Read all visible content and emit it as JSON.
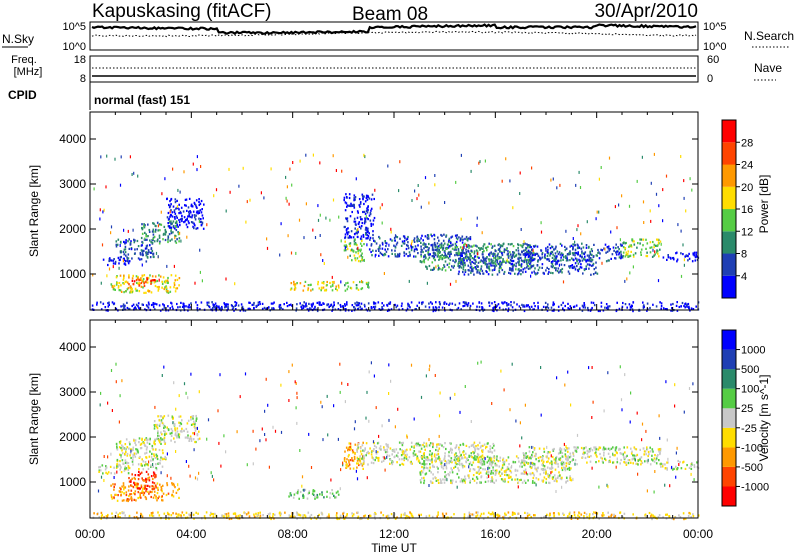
{
  "header": {
    "station": "Kapuskasing (fitACF)",
    "beam": "Beam 08",
    "date": "30/Apr/2010"
  },
  "top_panels": {
    "nsky_label": "N.Sky",
    "nsky_ticks": [
      "10^5",
      "10^0"
    ],
    "nsearch_label": "N.Search",
    "nsearch_ticks": [
      "10^5",
      "10^0"
    ],
    "freq_label_1": "Freq.",
    "freq_label_2": "[MHz]",
    "freq_ticks": [
      "18",
      "8"
    ],
    "nave_label": "Nave",
    "nave_ticks": [
      "60",
      "0"
    ],
    "cpid_label": "CPID",
    "cpid_value": "normal (fast) 151",
    "colors": {
      "line": "#000000"
    }
  },
  "chart_data": [
    {
      "type": "heatmap",
      "title": "",
      "xlabel": "",
      "ylabel": "Slant Range [km]",
      "x_ticks": [
        "00:00",
        "04:00",
        "08:00",
        "12:00",
        "16:00",
        "20:00",
        "00:00"
      ],
      "x_range_hours": [
        0,
        24
      ],
      "y_ticks": [
        1000,
        2000,
        3000,
        4000
      ],
      "ylim": [
        200,
        4600
      ],
      "colorbar": {
        "label": "Power [dB]",
        "ticks": [
          "4",
          "8",
          "12",
          "16",
          "20",
          "24",
          "28"
        ],
        "colors": [
          "#0000ff",
          "#1f3fb4",
          "#2a8a6a",
          "#55cc44",
          "#ffdd00",
          "#ff9900",
          "#ff4400",
          "#ff0000"
        ]
      },
      "bands": [
        {
          "t0": 0.5,
          "t1": 1.5,
          "r0": 1200,
          "r1": 1400,
          "level": 0
        },
        {
          "t0": 1.0,
          "t1": 2.5,
          "r0": 1300,
          "r1": 1800,
          "level": 1
        },
        {
          "t0": 2.0,
          "t1": 3.5,
          "r0": 1700,
          "r1": 2200,
          "level": 2
        },
        {
          "t0": 3.0,
          "t1": 4.5,
          "r0": 2000,
          "r1": 2700,
          "level": 0
        },
        {
          "t0": 0.8,
          "t1": 3.5,
          "r0": 600,
          "r1": 1000,
          "level": 4
        },
        {
          "t0": 1.5,
          "t1": 2.6,
          "r0": 750,
          "r1": 950,
          "level": 6
        },
        {
          "t0": 7.8,
          "t1": 9.8,
          "r0": 650,
          "r1": 850,
          "level": 4
        },
        {
          "t0": 10.0,
          "t1": 11.0,
          "r0": 650,
          "r1": 850,
          "level": 3
        },
        {
          "t0": 10.0,
          "t1": 10.8,
          "r0": 1300,
          "r1": 1800,
          "level": 3
        },
        {
          "t0": 10.0,
          "t1": 11.2,
          "r0": 1800,
          "r1": 2800,
          "level": 0
        },
        {
          "t0": 11.0,
          "t1": 15.0,
          "r0": 1400,
          "r1": 1900,
          "level": 1
        },
        {
          "t0": 13.0,
          "t1": 17.5,
          "r0": 1100,
          "r1": 1700,
          "level": 2
        },
        {
          "t0": 14.5,
          "t1": 20.0,
          "r0": 1000,
          "r1": 1500,
          "level": 1
        },
        {
          "t0": 17.0,
          "t1": 21.0,
          "r0": 1300,
          "r1": 1700,
          "level": 1
        },
        {
          "t0": 21.0,
          "t1": 22.5,
          "r0": 1400,
          "r1": 1800,
          "level": 3
        },
        {
          "t0": 22.5,
          "t1": 24.0,
          "r0": 1300,
          "r1": 1500,
          "level": 0
        },
        {
          "t0": 0.0,
          "t1": 24.0,
          "r0": 200,
          "r1": 400,
          "level": 0
        }
      ]
    },
    {
      "type": "heatmap",
      "title": "",
      "xlabel": "Time UT",
      "ylabel": "Slant Range [km]",
      "x_ticks": [
        "00:00",
        "04:00",
        "08:00",
        "12:00",
        "16:00",
        "20:00",
        "00:00"
      ],
      "x_range_hours": [
        0,
        24
      ],
      "y_ticks": [
        1000,
        2000,
        3000,
        4000
      ],
      "ylim": [
        200,
        4600
      ],
      "colorbar": {
        "label": "Velocity [m s^-1]",
        "ticks": [
          "1000",
          "500",
          "100",
          "25",
          "-25",
          "-100",
          "-500",
          "-1000"
        ],
        "colors": [
          "#0000ff",
          "#1f3fb4",
          "#2a8a6a",
          "#55cc44",
          "#c8c8c8",
          "#ffdd00",
          "#ff9900",
          "#ff4400",
          "#ff0000"
        ]
      },
      "bands": [
        {
          "t0": 0.3,
          "t1": 1.5,
          "r0": 1200,
          "r1": 1400,
          "level": 4
        },
        {
          "t0": 1.0,
          "t1": 3.0,
          "r0": 1300,
          "r1": 2000,
          "level": 4
        },
        {
          "t0": 2.5,
          "t1": 4.3,
          "r0": 1900,
          "r1": 2500,
          "level": 4
        },
        {
          "t0": 0.8,
          "t1": 3.5,
          "r0": 600,
          "r1": 1000,
          "level": 6
        },
        {
          "t0": 1.5,
          "t1": 2.6,
          "r0": 850,
          "r1": 1250,
          "level": 7
        },
        {
          "t0": 7.8,
          "t1": 9.8,
          "r0": 650,
          "r1": 850,
          "level": 3
        },
        {
          "t0": 10.0,
          "t1": 10.8,
          "r0": 1300,
          "r1": 1900,
          "level": 6
        },
        {
          "t0": 10.5,
          "t1": 16.0,
          "r0": 1400,
          "r1": 1900,
          "level": 4
        },
        {
          "t0": 13.0,
          "t1": 19.0,
          "r0": 1000,
          "r1": 1600,
          "level": 4
        },
        {
          "t0": 17.0,
          "t1": 22.5,
          "r0": 1400,
          "r1": 1800,
          "level": 4
        },
        {
          "t0": 22.5,
          "t1": 24.0,
          "r0": 1300,
          "r1": 1500,
          "level": 4
        },
        {
          "t0": 0.0,
          "t1": 24.0,
          "r0": 200,
          "r1": 350,
          "level": 5
        }
      ]
    }
  ]
}
